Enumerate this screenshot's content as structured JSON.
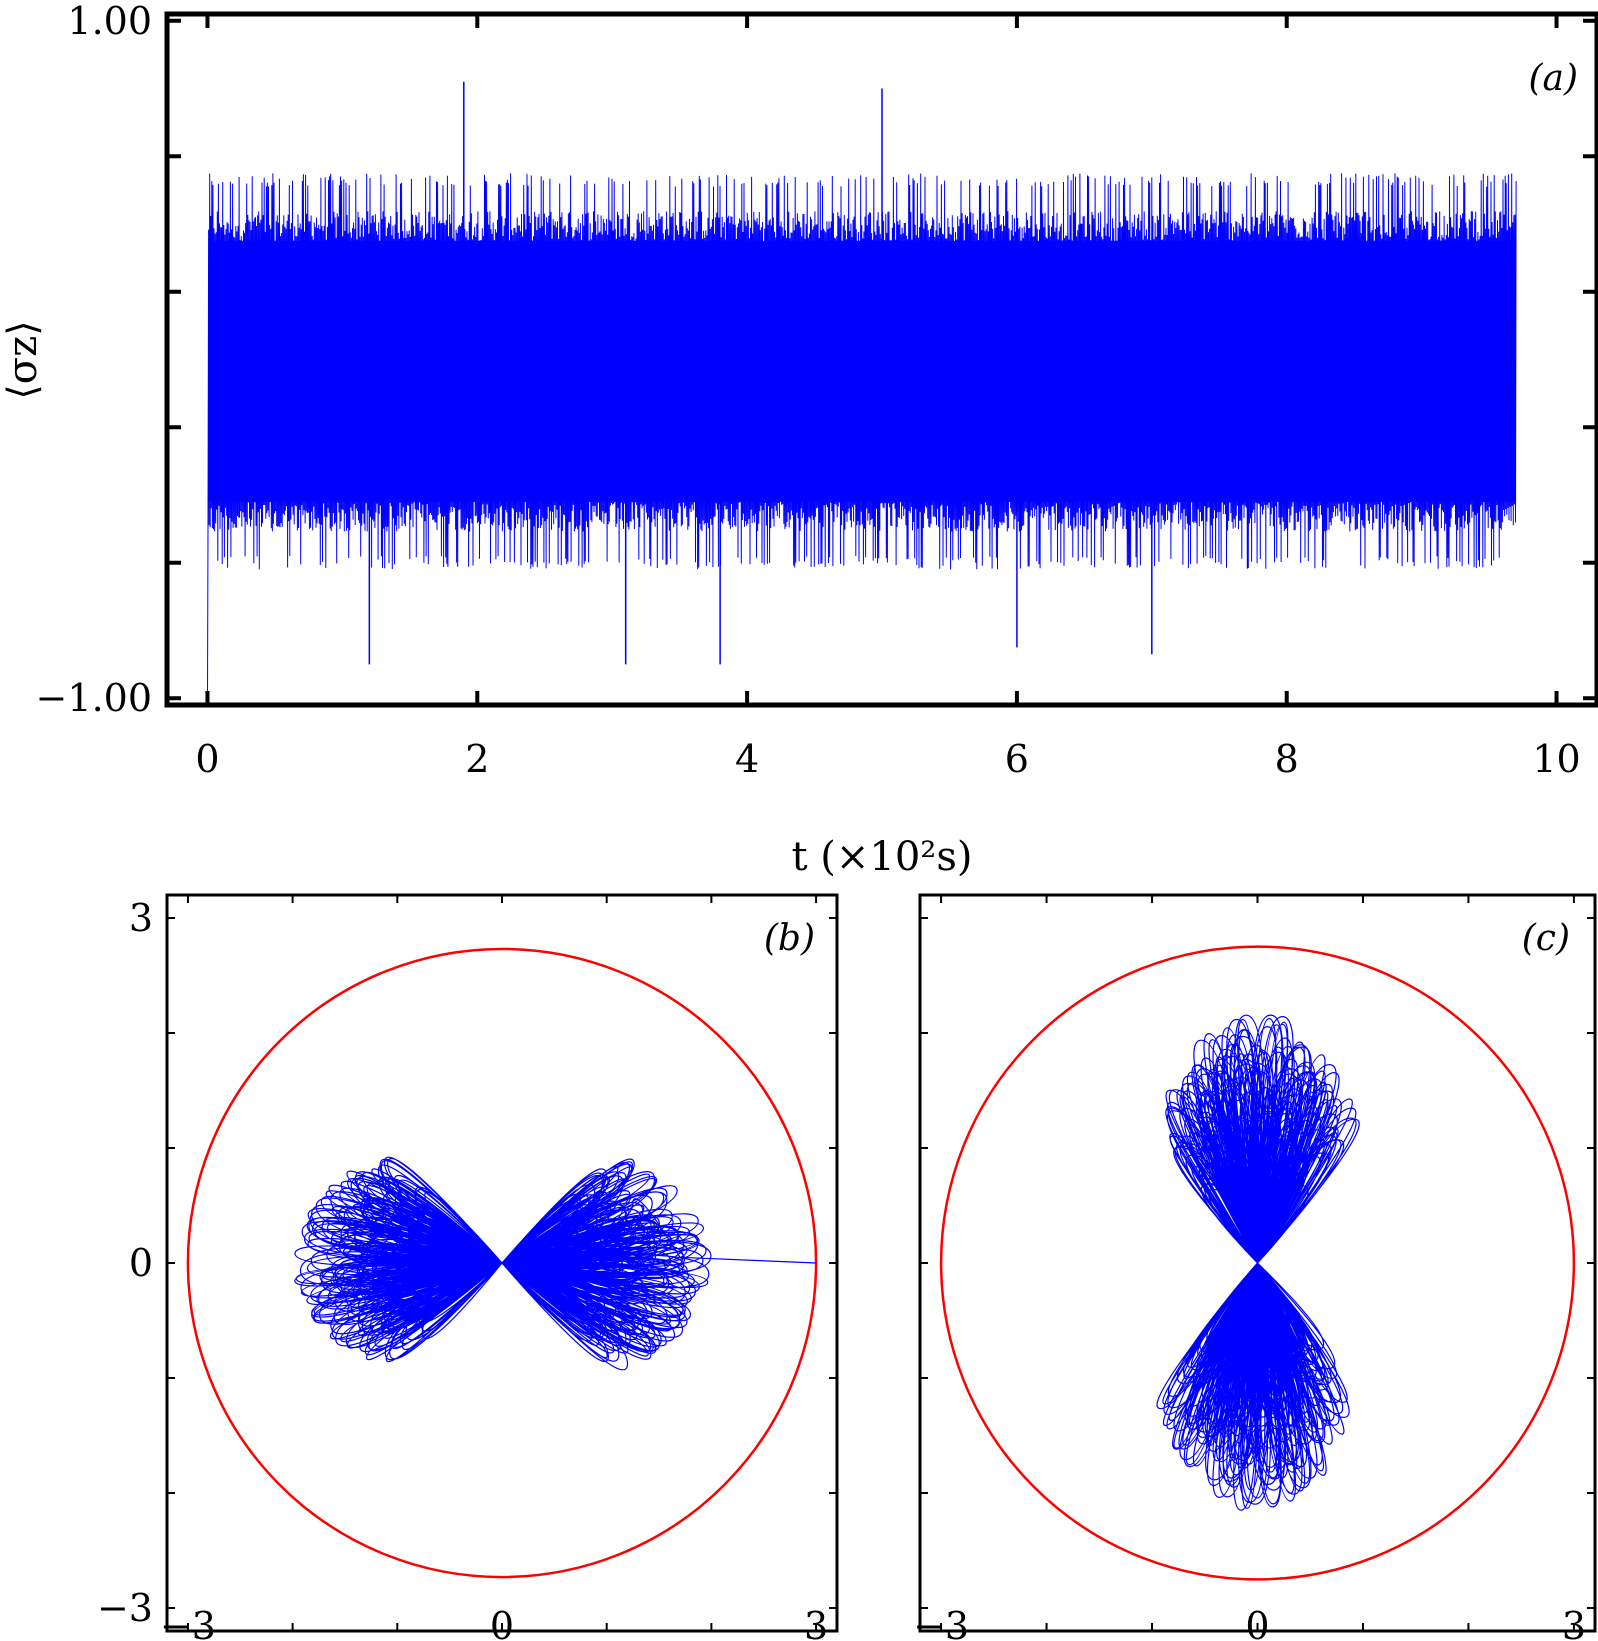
{
  "chart_data": [
    {
      "type": "line",
      "panel_label": "(a)",
      "xlabel": "t (×10²s)",
      "ylabel": "⟨σz⟩",
      "xlim": [
        -0.3,
        10.3
      ],
      "ylim": [
        -1.02,
        1.02
      ],
      "x_ticks": [
        0,
        2,
        4,
        6,
        8,
        10
      ],
      "x_tick_labels": [
        "0",
        "2",
        "4",
        "6",
        "8",
        "10"
      ],
      "y_ticks": [
        -1.0,
        -0.6,
        -0.2,
        0.2,
        0.6,
        1.0
      ],
      "y_tick_labels": [
        "−1.00",
        "",
        "",
        "",
        "",
        "1.00"
      ],
      "series": [
        {
          "color": "#0000ff",
          "x_range": [
            0,
            9.7
          ],
          "initial_value": -1.0,
          "dense_band": [
            -0.42,
            0.35
          ],
          "envelope_upper": 0.55,
          "envelope_lower": -0.62,
          "spikes": [
            {
              "x": 1.9,
              "y": 0.82
            },
            {
              "x": 5.0,
              "y": 0.8
            },
            {
              "x": 1.2,
              "y": -0.9
            },
            {
              "x": 3.1,
              "y": -0.9
            },
            {
              "x": 3.8,
              "y": -0.9
            },
            {
              "x": 7.0,
              "y": -0.87
            },
            {
              "x": 6.0,
              "y": -0.85
            }
          ]
        }
      ],
      "grid": false
    },
    {
      "type": "line",
      "panel_label": "(b)",
      "xlim": [
        -3.2,
        3.2
      ],
      "ylim": [
        -3.2,
        3.2
      ],
      "x_ticks": [
        -3,
        0,
        3
      ],
      "x_tick_labels": [
        "−3",
        "0",
        "3"
      ],
      "y_ticks": [
        -3,
        0,
        3
      ],
      "y_tick_labels": [
        "−3",
        "0",
        "3"
      ],
      "circle": {
        "color": "#ff0000",
        "center": [
          0,
          0
        ],
        "radius": 3
      },
      "trajectory": {
        "color": "#0000ff",
        "shape": "horizontal-butterfly",
        "start": [
          3.0,
          0.0
        ],
        "lobe_extent_x": [
          -2.0,
          2.0
        ],
        "lobe_extent_y": [
          -1.1,
          1.1
        ]
      },
      "grid": false
    },
    {
      "type": "line",
      "panel_label": "(c)",
      "xlim": [
        -3.2,
        3.2
      ],
      "ylim": [
        -3.2,
        3.2
      ],
      "x_ticks": [
        -3,
        0,
        3
      ],
      "x_tick_labels": [
        "−3",
        "0",
        "3"
      ],
      "circle": {
        "color": "#ff0000",
        "center": [
          0,
          0
        ],
        "radius": 3
      },
      "trajectory": {
        "color": "#0000ff",
        "shape": "vertical-butterfly",
        "lobe_extent_x": [
          -1.1,
          1.1
        ],
        "lobe_extent_y": [
          -2.2,
          2.2
        ]
      },
      "grid": false
    }
  ]
}
